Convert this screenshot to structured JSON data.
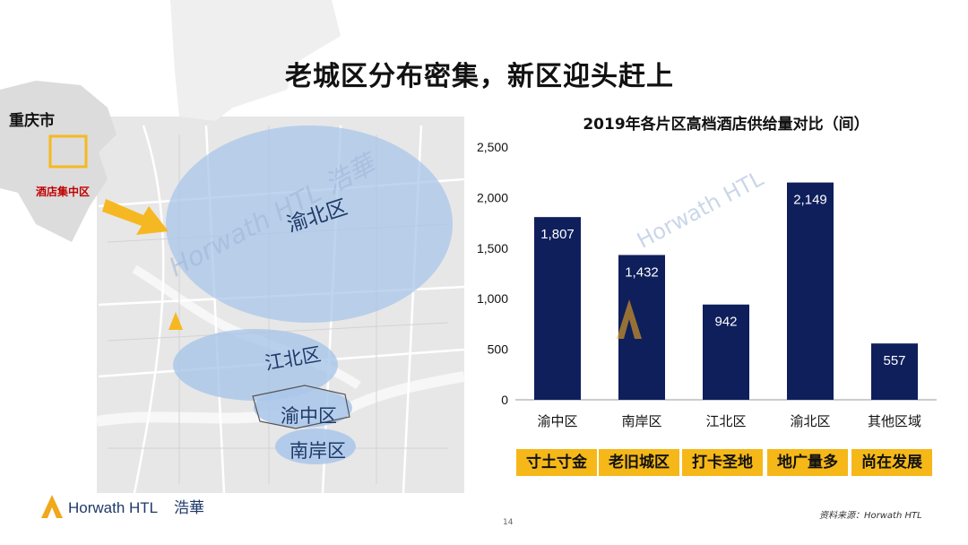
{
  "slide": {
    "title": "老城区分布密集，新区迎头赶上",
    "page_number": "14",
    "source": "资料来源：Horwath HTL"
  },
  "map": {
    "city_label": "重庆市",
    "hotel_cluster_label": "酒店集中区",
    "districts": [
      "渝北区",
      "江北区",
      "渝中区",
      "南岸区"
    ],
    "watermark": "Horwath HTL 浩華",
    "colors": {
      "district_fill": "#a9c6ea",
      "arrow": "#f6b822",
      "land": "#e6e6e6",
      "road": "#ffffff"
    }
  },
  "chart_data": {
    "type": "bar",
    "title": "2019年各片区高档酒店供给量对比（间）",
    "categories": [
      "渝中区",
      "南岸区",
      "江北区",
      "渝北区",
      "其他区域"
    ],
    "values": [
      1807,
      1432,
      942,
      2149,
      557
    ],
    "value_labels": [
      "1,807",
      "1,432",
      "942",
      "2,149",
      "557"
    ],
    "ylim": [
      0,
      2500
    ],
    "yticks": [
      0,
      500,
      1000,
      1500,
      2000,
      2500
    ],
    "ytick_labels": [
      "0",
      "500",
      "1,000",
      "1,500",
      "2,000",
      "2,500"
    ],
    "grid": false,
    "bar_color": "#0f1f5c",
    "label_color": "#ffffff"
  },
  "chart_watermark": "Horwath HTL",
  "tags": [
    "寸土寸金",
    "老旧城区",
    "打卡圣地",
    "地广量多",
    "尚在发展"
  ],
  "brand": {
    "logo_text": "Horwath HTL",
    "logo_cn": "浩華",
    "logo_color": "#f0a81c"
  }
}
